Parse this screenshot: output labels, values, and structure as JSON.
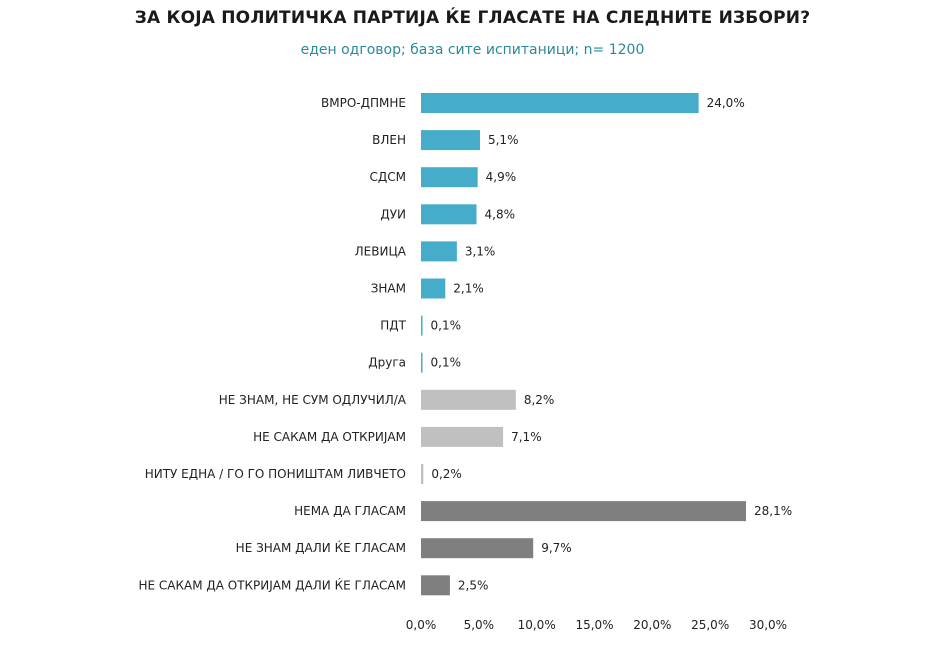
{
  "chart_data": {
    "type": "bar",
    "orientation": "horizontal",
    "title": "ЗА КОЈА ПОЛИТИЧКА ПАРТИЈА ЌЕ ГЛАСАТЕ НА СЛЕДНИТЕ ИЗБОРИ?",
    "subtitle": "еден одговор; база сите испитаници; n= 1200",
    "categories": [
      "ВМРО-ДПМНЕ",
      "ВЛЕН",
      "СДСМ",
      "ДУИ",
      "ЛЕВИЦА",
      "ЗНАМ",
      "ПДТ",
      "Друга",
      "НЕ ЗНАМ, НЕ СУМ ОДЛУЧИЛ/А",
      "НЕ САКАМ ДА ОТКРИЈАМ",
      "НИТУ ЕДНА / ГО ГО ПОНИШТАМ ЛИВЧЕТО",
      "НЕМА ДА ГЛАСАМ",
      "НЕ ЗНАМ ДАЛИ ЌЕ ГЛАСАМ",
      "НЕ САКАМ ДА ОТКРИЈАМ ДАЛИ ЌЕ ГЛАСАМ"
    ],
    "values": [
      24.0,
      5.1,
      4.9,
      4.8,
      3.1,
      2.1,
      0.1,
      0.1,
      8.2,
      7.1,
      0.2,
      28.1,
      9.7,
      2.5
    ],
    "value_labels": [
      "24,0%",
      "5,1%",
      "4,9%",
      "4,8%",
      "3,1%",
      "2,1%",
      "0,1%",
      "0,1%",
      "8,2%",
      "7,1%",
      "0,2%",
      "28,1%",
      "9,7%",
      "2,5%"
    ],
    "bar_colors": [
      "#45adc9",
      "#45adc9",
      "#45adc9",
      "#45adc9",
      "#45adc9",
      "#45adc9",
      "#45adc9",
      "#45adc9",
      "#c0c0c0",
      "#c0c0c0",
      "#c0c0c0",
      "#7f7f7f",
      "#7f7f7f",
      "#7f7f7f"
    ],
    "xlim": [
      0,
      30
    ],
    "x_ticks": [
      0,
      5,
      10,
      15,
      20,
      25,
      30
    ],
    "x_tick_labels": [
      "0,0%",
      "5,0%",
      "10,0%",
      "15,0%",
      "20,0%",
      "25,0%",
      "30,0%"
    ],
    "grid": false,
    "legend": "none"
  }
}
